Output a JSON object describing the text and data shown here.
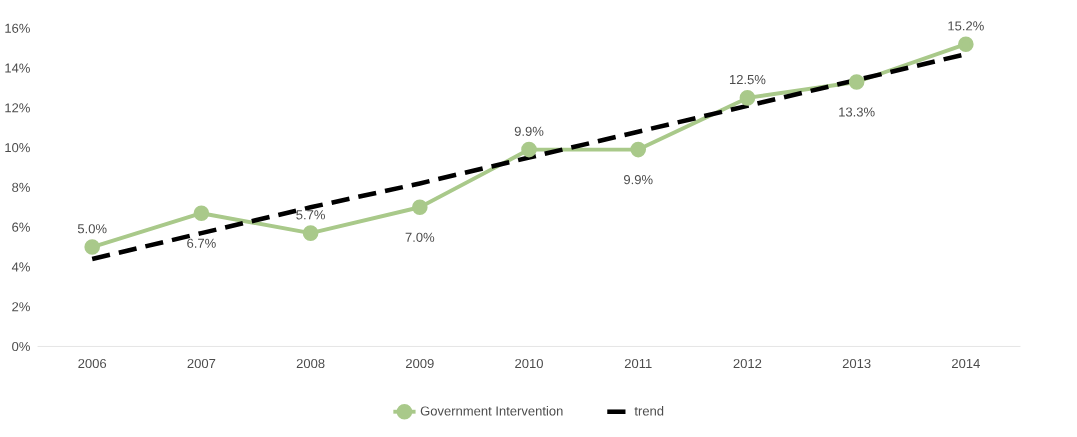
{
  "chart_data": {
    "type": "line",
    "categories": [
      "2006",
      "2007",
      "2008",
      "2009",
      "2010",
      "2011",
      "2012",
      "2013",
      "2014"
    ],
    "series": [
      {
        "name": "Government Intervention",
        "color": "#a9c98a",
        "marker": "circle",
        "line_style": "solid",
        "values": [
          5.0,
          6.7,
          5.7,
          7.0,
          9.9,
          9.9,
          12.5,
          13.3,
          15.2
        ],
        "value_labels": [
          "5.0%",
          "6.7%",
          "5.7%",
          "7.0%",
          "9.9%",
          "9.9%",
          "12.5%",
          "13.3%",
          "15.2%"
        ]
      },
      {
        "name": "trend",
        "color": "#000000",
        "marker": "none",
        "line_style": "dashed",
        "values": [
          4.4,
          5.7,
          7.0,
          8.2,
          9.5,
          10.8,
          12.1,
          13.4,
          14.7
        ]
      }
    ],
    "ylim": [
      0,
      16
    ],
    "yticks": [
      {
        "value": 0,
        "label": "0%"
      },
      {
        "value": 2,
        "label": "2%"
      },
      {
        "value": 4,
        "label": "4%"
      },
      {
        "value": 6,
        "label": "6%"
      },
      {
        "value": 8,
        "label": "8%"
      },
      {
        "value": 10,
        "label": "10%"
      },
      {
        "value": 12,
        "label": "12%"
      },
      {
        "value": 14,
        "label": "14%"
      },
      {
        "value": 16,
        "label": "16%"
      }
    ],
    "legend": "bottom"
  }
}
